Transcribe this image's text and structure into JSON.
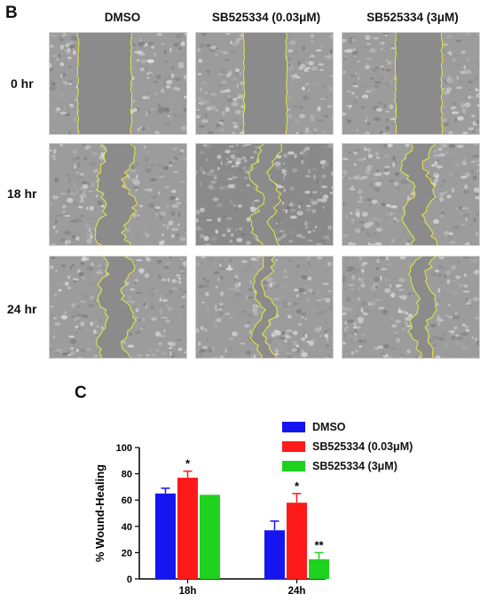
{
  "panel_b": {
    "letter": "B",
    "columns": [
      "DMSO",
      "SB525334 (0.03μM)",
      "SB525334 (3μM)"
    ],
    "rows": [
      "0 hr",
      "18 hr",
      "24 hr"
    ]
  },
  "panel_c": {
    "letter": "C"
  },
  "colors": {
    "dmso": "#1515f0",
    "low": "#ff1a1a",
    "high": "#1fd21f",
    "outline": "#e8e83a"
  },
  "chart_data": {
    "type": "bar",
    "categories": [
      "18h",
      "24h"
    ],
    "series": [
      {
        "name": "DMSO",
        "values": [
          65,
          37
        ],
        "errors": [
          4,
          7
        ],
        "color": "#1515f0"
      },
      {
        "name": "SB525334 (0.03μM)",
        "values": [
          77,
          58
        ],
        "errors": [
          5,
          7
        ],
        "color": "#ff1a1a"
      },
      {
        "name": "SB525334 (3μM)",
        "values": [
          64,
          15
        ],
        "errors": [
          0,
          5
        ],
        "color": "#1fd21f"
      }
    ],
    "annotations": [
      {
        "category": "18h",
        "series": 1,
        "text": "*"
      },
      {
        "category": "24h",
        "series": 1,
        "text": "*"
      },
      {
        "category": "24h",
        "series": 2,
        "text": "**"
      }
    ],
    "ylabel": "% Wound-Healing",
    "xlabel": "",
    "ylim": [
      0,
      100
    ],
    "yticks": [
      0,
      20,
      40,
      60,
      80,
      100
    ],
    "legend_position": "top-right"
  }
}
